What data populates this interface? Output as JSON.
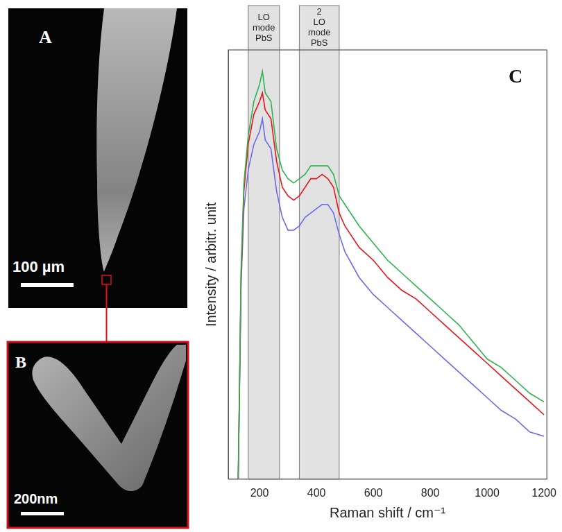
{
  "panels": [
    {
      "panel": "A",
      "scale_bar": "100 µm"
    },
    {
      "panel": "B",
      "scale_bar": "200nm"
    }
  ],
  "chart_data": {
    "panel": "C",
    "type": "line",
    "x_label": "Raman shift / cm⁻¹",
    "y_label": "Intensity / arbitr. unit",
    "x": [
      125,
      135,
      145,
      160,
      180,
      200,
      210,
      220,
      240,
      260,
      280,
      300,
      320,
      340,
      360,
      380,
      400,
      420,
      440,
      460,
      480,
      500,
      550,
      600,
      650,
      700,
      750,
      800,
      850,
      900,
      950,
      1000,
      1050,
      1100,
      1150,
      1200
    ],
    "series": [
      {
        "color": "#2fb34f",
        "values": [
          0,
          49,
          69,
          80,
          88,
          92,
          95,
          90,
          88,
          77,
          72,
          70,
          69,
          70,
          71,
          73,
          73,
          73,
          73,
          71,
          66,
          64,
          59,
          55,
          51,
          48,
          45,
          42,
          39,
          36,
          32,
          28,
          26,
          23,
          20,
          18
        ]
      },
      {
        "color": "#e8141a",
        "values": [
          0,
          47,
          67,
          78,
          85,
          88,
          90,
          86,
          84,
          74,
          68,
          66,
          65,
          66,
          68,
          70,
          70,
          71,
          70,
          68,
          62,
          59,
          54,
          51,
          47,
          44,
          42,
          39,
          36,
          33,
          30,
          27,
          24,
          21,
          18,
          15
        ]
      },
      {
        "color": "#6b6be8",
        "values": [
          0,
          45,
          63,
          72,
          78,
          81,
          84,
          79,
          77,
          67,
          61,
          58,
          58,
          59,
          61,
          62,
          63,
          64,
          64,
          62,
          57,
          53,
          47,
          43,
          40,
          37,
          34,
          31,
          28,
          25,
          22,
          19,
          16,
          14,
          11,
          10
        ]
      }
    ],
    "bands": [
      {
        "label": "LO mode PbS",
        "x": [
          160,
          270
        ]
      },
      {
        "label": "2 LO mode PbS",
        "x": [
          340,
          480
        ]
      }
    ],
    "xlim": [
      90,
      1210
    ],
    "xticks": [
      200,
      400,
      600,
      800,
      1000,
      1200
    ],
    "ylim": [
      0,
      100
    ],
    "tick_labels": "x",
    "grid": false
  }
}
